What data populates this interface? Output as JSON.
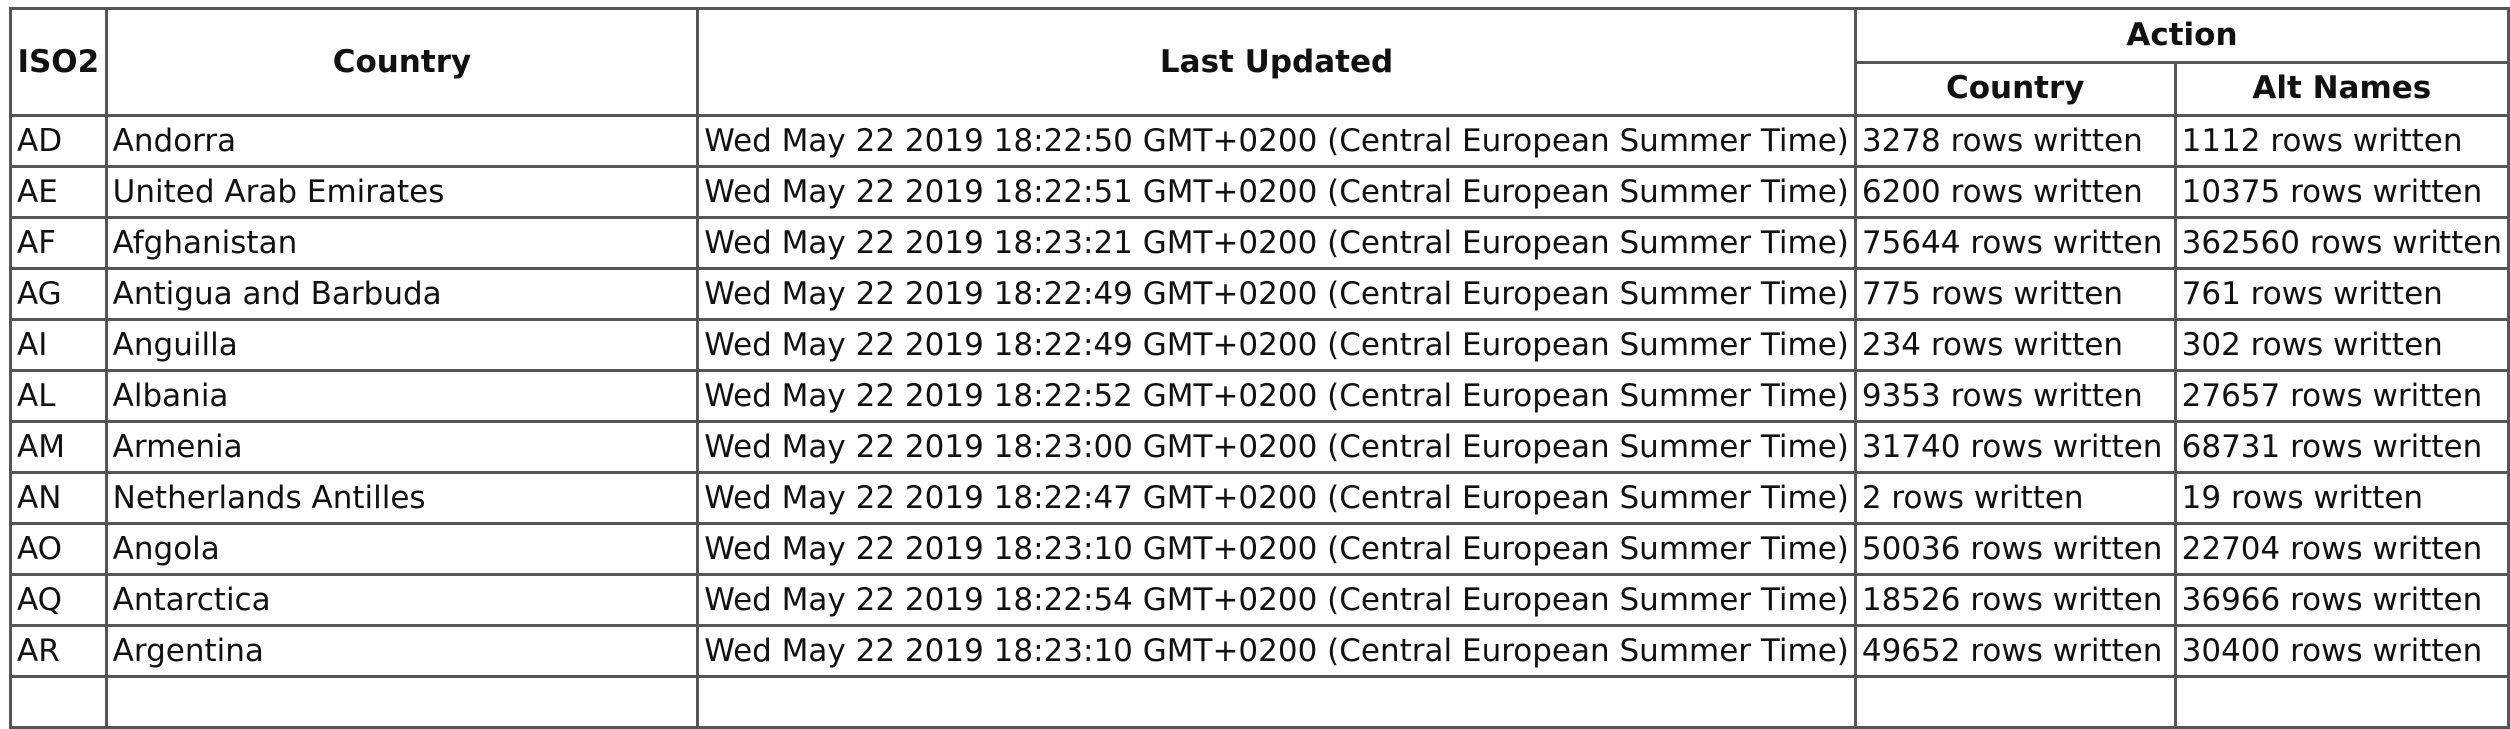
{
  "table": {
    "headers": {
      "iso2": "ISO2",
      "country": "Country",
      "last_updated": "Last Updated",
      "action": "Action",
      "action_country": "Country",
      "action_alt_names": "Alt Names"
    },
    "rows": [
      {
        "iso2": "AD",
        "country": "Andorra",
        "last_updated": "Wed May 22 2019 18:22:50 GMT+0200 (Central European Summer Time)",
        "action_country": "3278 rows written",
        "action_alt_names": "1112 rows written"
      },
      {
        "iso2": "AE",
        "country": "United Arab Emirates",
        "last_updated": "Wed May 22 2019 18:22:51 GMT+0200 (Central European Summer Time)",
        "action_country": "6200 rows written",
        "action_alt_names": "10375 rows written"
      },
      {
        "iso2": "AF",
        "country": "Afghanistan",
        "last_updated": "Wed May 22 2019 18:23:21 GMT+0200 (Central European Summer Time)",
        "action_country": "75644 rows written",
        "action_alt_names": "362560 rows written"
      },
      {
        "iso2": "AG",
        "country": "Antigua and Barbuda",
        "last_updated": "Wed May 22 2019 18:22:49 GMT+0200 (Central European Summer Time)",
        "action_country": "775 rows written",
        "action_alt_names": "761 rows written"
      },
      {
        "iso2": "AI",
        "country": "Anguilla",
        "last_updated": "Wed May 22 2019 18:22:49 GMT+0200 (Central European Summer Time)",
        "action_country": "234 rows written",
        "action_alt_names": "302 rows written"
      },
      {
        "iso2": "AL",
        "country": "Albania",
        "last_updated": "Wed May 22 2019 18:22:52 GMT+0200 (Central European Summer Time)",
        "action_country": "9353 rows written",
        "action_alt_names": "27657 rows written"
      },
      {
        "iso2": "AM",
        "country": "Armenia",
        "last_updated": "Wed May 22 2019 18:23:00 GMT+0200 (Central European Summer Time)",
        "action_country": "31740 rows written",
        "action_alt_names": "68731 rows written"
      },
      {
        "iso2": "AN",
        "country": "Netherlands Antilles",
        "last_updated": "Wed May 22 2019 18:22:47 GMT+0200 (Central European Summer Time)",
        "action_country": "2 rows written",
        "action_alt_names": "19 rows written"
      },
      {
        "iso2": "AO",
        "country": "Angola",
        "last_updated": "Wed May 22 2019 18:23:10 GMT+0200 (Central European Summer Time)",
        "action_country": "50036 rows written",
        "action_alt_names": "22704 rows written"
      },
      {
        "iso2": "AQ",
        "country": "Antarctica",
        "last_updated": "Wed May 22 2019 18:22:54 GMT+0200 (Central European Summer Time)",
        "action_country": "18526 rows written",
        "action_alt_names": "36966 rows written"
      },
      {
        "iso2": "AR",
        "country": "Argentina",
        "last_updated": "Wed May 22 2019 18:23:10 GMT+0200 (Central European Summer Time)",
        "action_country": "49652 rows written",
        "action_alt_names": "30400 rows written"
      },
      {
        "iso2": "",
        "country": "",
        "last_updated": "",
        "action_country": "",
        "action_alt_names": ""
      }
    ]
  }
}
